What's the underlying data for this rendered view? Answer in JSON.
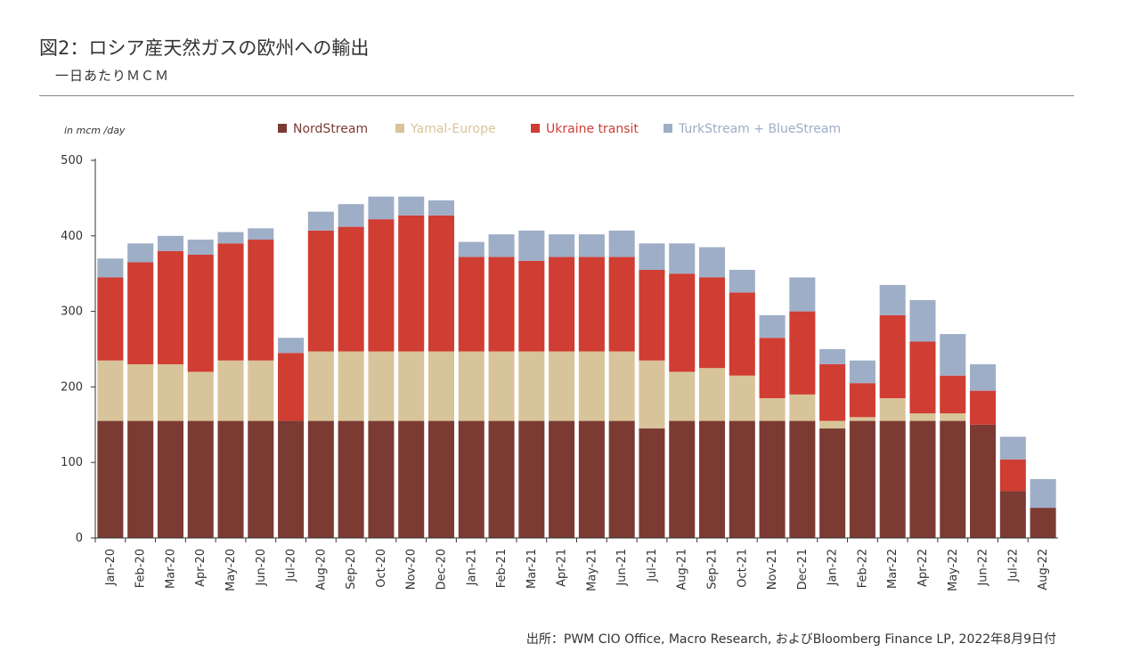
{
  "header": {
    "title": "図2：ロシア産天然ガスの欧州への輸出",
    "subtitle": "一日あたりＭＣＭ"
  },
  "footer": {
    "source": "出所：PWM CIO Office, Macro Research, およびBloomberg Finance LP,  2022年8月9日付"
  },
  "colors": {
    "nordstream": "#7b3b33",
    "yamal": "#d8c49a",
    "ukraine": "#d03d33",
    "turk": "#9eaec7",
    "axis": "#333333"
  },
  "chart_data": {
    "type": "bar",
    "stacked": true,
    "unit_label": "in mcm /day",
    "ylim": [
      0,
      500
    ],
    "yticks": [
      0,
      100,
      200,
      300,
      400,
      500
    ],
    "categories": [
      "Jan-20",
      "Feb-20",
      "Mar-20",
      "Apr-20",
      "May-20",
      "Jun-20",
      "Jul-20",
      "Aug-20",
      "Sep-20",
      "Oct-20",
      "Nov-20",
      "Dec-20",
      "Jan-21",
      "Feb-21",
      "Mar-21",
      "Apr-21",
      "May-21",
      "Jun-21",
      "Jul-21",
      "Aug-21",
      "Sep-21",
      "Oct-21",
      "Nov-21",
      "Dec-21",
      "Jan-22",
      "Feb-22",
      "Mar-22",
      "Apr-22",
      "May-22",
      "Jun-22",
      "Jul-22",
      "Aug-22"
    ],
    "legend_position": "top",
    "series": [
      {
        "name": "NordStream",
        "color_key": "nordstream",
        "values": [
          155,
          155,
          155,
          155,
          155,
          155,
          155,
          155,
          155,
          155,
          155,
          155,
          155,
          155,
          155,
          155,
          155,
          155,
          145,
          155,
          155,
          155,
          155,
          155,
          145,
          155,
          155,
          155,
          155,
          150,
          62,
          40
        ]
      },
      {
        "name": "Yamal-Europe",
        "color_key": "yamal",
        "values": [
          80,
          75,
          75,
          65,
          80,
          80,
          0,
          92,
          92,
          92,
          92,
          92,
          92,
          92,
          92,
          92,
          92,
          92,
          90,
          65,
          70,
          60,
          30,
          35,
          10,
          5,
          30,
          10,
          10,
          0,
          0,
          0
        ]
      },
      {
        "name": "Ukraine transit",
        "color_key": "ukraine",
        "values": [
          110,
          135,
          150,
          155,
          155,
          160,
          90,
          160,
          165,
          175,
          180,
          180,
          125,
          125,
          120,
          125,
          125,
          125,
          120,
          130,
          120,
          110,
          80,
          110,
          75,
          45,
          110,
          95,
          50,
          45,
          42,
          0
        ]
      },
      {
        "name": "TurkStream + BlueStream",
        "color_key": "turk",
        "values": [
          25,
          25,
          20,
          20,
          15,
          15,
          20,
          25,
          30,
          30,
          25,
          20,
          20,
          30,
          40,
          30,
          30,
          35,
          35,
          40,
          40,
          30,
          30,
          45,
          20,
          30,
          40,
          55,
          55,
          35,
          30,
          38
        ]
      }
    ]
  }
}
